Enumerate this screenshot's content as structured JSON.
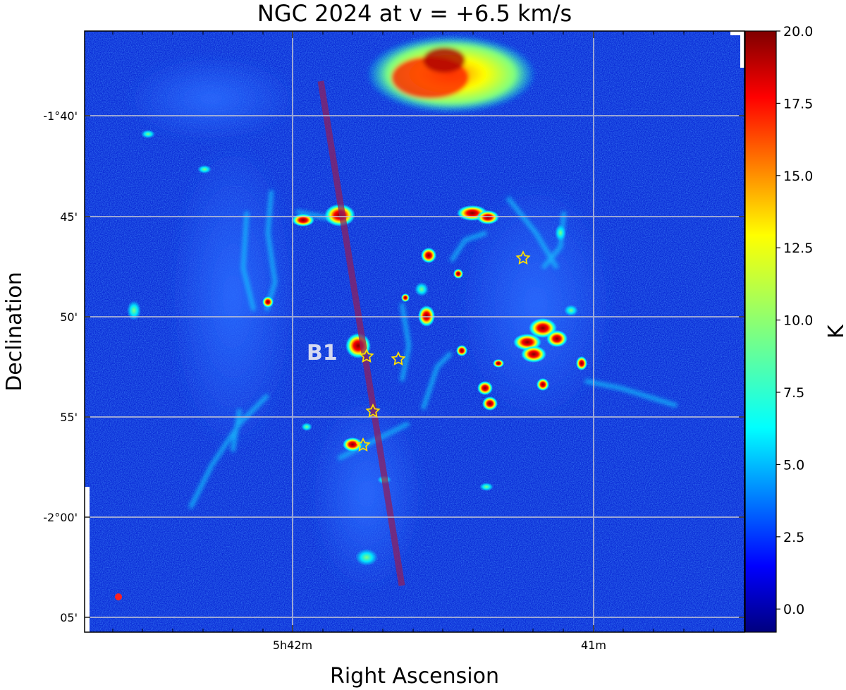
{
  "figure": {
    "title": "NGC 2024 at v = +6.5 km/s",
    "xlabel": "Right Ascension",
    "ylabel": "Declination",
    "colorbar_label": "K",
    "colorbar": {
      "min": -0.8,
      "max": 20.0,
      "ticks": [
        "20.0",
        "17.5",
        "15.0",
        "12.5",
        "10.0",
        "7.5",
        "5.0",
        "2.5",
        "0.0"
      ],
      "tick_values": [
        20.0,
        17.5,
        15.0,
        12.5,
        10.0,
        7.5,
        5.0,
        2.5,
        0.0
      ],
      "colormap": "jet",
      "colormap_stops": [
        "#00007f",
        "#0000ff",
        "#007fff",
        "#00ffff",
        "#7fff7f",
        "#ffff00",
        "#ff7f00",
        "#ff0000",
        "#7f0000"
      ]
    },
    "ra_ticks": [
      "5h42m",
      "41m"
    ],
    "dec_ticks": [
      "-1°40'",
      "45'",
      "50'",
      "55'",
      "-2°00'",
      "05'"
    ],
    "annotation": "B1",
    "colors": {
      "background_map": "#0a2bd6",
      "grid": "#c8c8d2",
      "cut_line": "#8c2060",
      "star": "#ffe000",
      "beam": "#ff2020"
    },
    "stars_count": 5
  }
}
